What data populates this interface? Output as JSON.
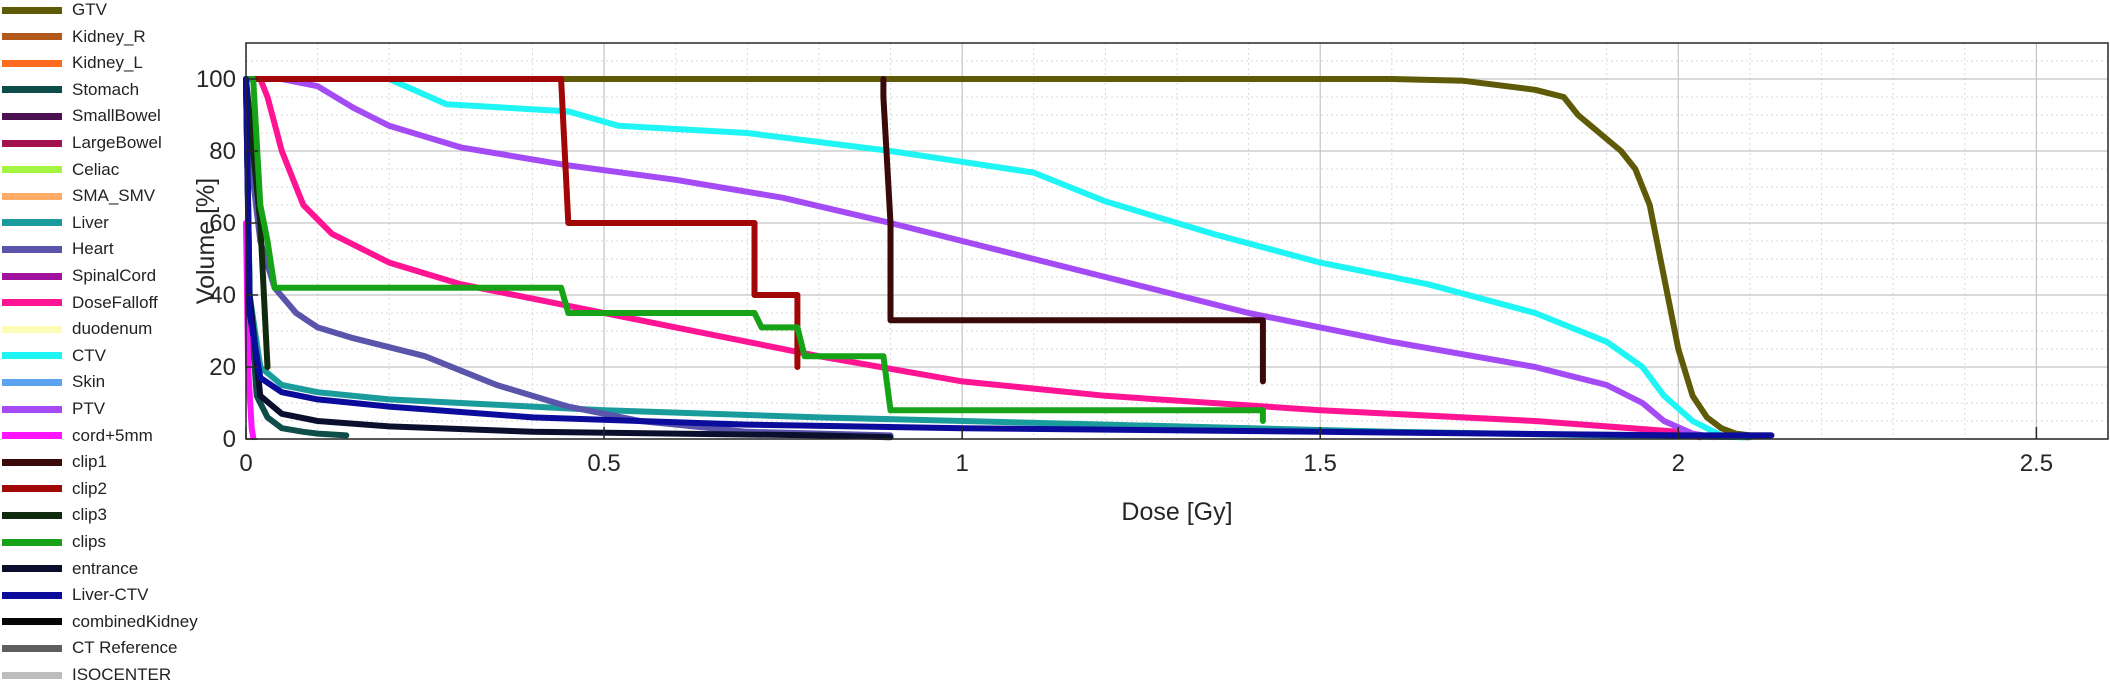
{
  "chart_data": {
    "type": "line",
    "xlabel": "Dose [Gy]",
    "ylabel": "Volume [%]",
    "xlim": [
      0,
      2.6
    ],
    "ylim": [
      0,
      110
    ],
    "xticks": [
      0,
      0.5,
      1,
      1.5,
      2,
      2.5
    ],
    "xtick_labels": [
      "0",
      "0.5",
      "1",
      "1.5",
      "2",
      "2.5"
    ],
    "yticks": [
      0,
      20,
      40,
      60,
      80,
      100
    ],
    "ytick_labels": [
      "0",
      "20",
      "40",
      "60",
      "80",
      "100"
    ],
    "grid": true,
    "minor_grid": true,
    "legend_position": "left",
    "series": [
      {
        "name": "GTV",
        "color": "#5e5a07",
        "x": [
          0,
          1.6,
          1.7,
          1.8,
          1.84,
          1.86,
          1.89,
          1.92,
          1.94,
          1.96,
          1.98,
          2.0,
          2.02,
          2.04,
          2.06,
          2.08,
          2.1,
          2.13
        ],
        "y": [
          100,
          100,
          99.5,
          97,
          95,
          90,
          85,
          80,
          75,
          65,
          45,
          25,
          12,
          6,
          3,
          1.5,
          1,
          1
        ]
      },
      {
        "name": "Kidney_R",
        "color": "#b3581b",
        "x": [],
        "y": []
      },
      {
        "name": "Kidney_L",
        "color": "#ff6a1f",
        "x": [],
        "y": []
      },
      {
        "name": "Stomach",
        "color": "#0f4d4a",
        "x": [
          0,
          0.005,
          0.015,
          0.03,
          0.05,
          0.08,
          0.1,
          0.14
        ],
        "y": [
          100,
          40,
          12,
          6,
          3,
          2,
          1.5,
          1
        ]
      },
      {
        "name": "SmallBowel",
        "color": "#4b1050",
        "x": [],
        "y": []
      },
      {
        "name": "LargeBowel",
        "color": "#a3124e",
        "x": [],
        "y": []
      },
      {
        "name": "Celiac",
        "color": "#a3f542",
        "x": [],
        "y": []
      },
      {
        "name": "SMA_SMV",
        "color": "#ffad66",
        "x": [],
        "y": []
      },
      {
        "name": "Liver",
        "color": "#1b9c9c",
        "x": [
          0,
          0.005,
          0.02,
          0.05,
          0.1,
          0.2,
          0.3,
          0.5,
          0.8,
          1.2,
          1.6,
          1.9,
          2.1
        ],
        "y": [
          100,
          40,
          20,
          15,
          13,
          11,
          10,
          8,
          6,
          4,
          2,
          1,
          0.5
        ]
      },
      {
        "name": "Heart",
        "color": "#5a55aa",
        "x": [
          0,
          0.005,
          0.02,
          0.04,
          0.07,
          0.1,
          0.15,
          0.25,
          0.35,
          0.45,
          0.55,
          0.7,
          0.9
        ],
        "y": [
          100,
          80,
          55,
          42,
          35,
          31,
          28,
          23,
          15,
          9,
          5,
          2,
          1
        ]
      },
      {
        "name": "SpinalCord",
        "color": "#a0129e",
        "x": [],
        "y": []
      },
      {
        "name": "DoseFalloff",
        "color": "#ff1493",
        "x": [
          0,
          0.02,
          0.03,
          0.05,
          0.08,
          0.12,
          0.2,
          0.3,
          0.45,
          0.6,
          0.8,
          1.0,
          1.2,
          1.5,
          1.8,
          2.0,
          2.03
        ],
        "y": [
          100,
          100,
          95,
          80,
          65,
          57,
          49,
          43,
          37,
          31,
          23,
          16,
          12,
          8,
          5,
          2,
          0.5
        ]
      },
      {
        "name": "duodenum",
        "color": "#fdfdb8",
        "x": [],
        "y": []
      },
      {
        "name": "CTV",
        "color": "#1ff5f5",
        "x": [
          0,
          0.2,
          0.28,
          0.45,
          0.52,
          0.7,
          0.9,
          1.0,
          1.1,
          1.2,
          1.35,
          1.5,
          1.65,
          1.8,
          1.9,
          1.95,
          1.98,
          2.02,
          2.06,
          2.09
        ],
        "y": [
          100,
          100,
          93,
          91,
          87,
          85,
          80,
          77,
          74,
          66,
          57,
          49,
          43,
          35,
          27,
          20,
          12,
          5,
          1,
          0.5
        ]
      },
      {
        "name": "Skin",
        "color": "#5aa3f0",
        "x": [],
        "y": []
      },
      {
        "name": "PTV",
        "color": "#a54bf5",
        "x": [
          0,
          0.05,
          0.1,
          0.15,
          0.2,
          0.3,
          0.45,
          0.6,
          0.75,
          0.9,
          1.0,
          1.2,
          1.4,
          1.6,
          1.8,
          1.9,
          1.95,
          1.98,
          2.02,
          2.05
        ],
        "y": [
          100,
          100,
          98,
          92,
          87,
          81,
          76,
          72,
          67,
          60,
          55,
          45,
          35,
          27,
          20,
          15,
          10,
          5,
          1.5,
          0.5
        ]
      },
      {
        "name": "cord+5mm",
        "color": "#ff14ff",
        "x": [
          0,
          0.003,
          0.008,
          0.01
        ],
        "y": [
          60,
          20,
          3,
          0.5
        ]
      },
      {
        "name": "clip1",
        "color": "#3a0a0a",
        "x": [
          0.89,
          0.89,
          0.9,
          0.9,
          1.42,
          1.42,
          1.42
        ],
        "y": [
          100,
          95,
          60,
          33,
          33,
          25,
          16
        ]
      },
      {
        "name": "clip2",
        "color": "#a10707",
        "x": [
          0,
          0.44,
          0.45,
          0.71,
          0.71,
          0.77,
          0.77,
          0.77
        ],
        "y": [
          100,
          100,
          60,
          60,
          40,
          40,
          25,
          20
        ]
      },
      {
        "name": "clip3",
        "color": "#0f2a0f",
        "x": [
          0,
          0.02,
          0.025,
          0.03
        ],
        "y": [
          100,
          60,
          40,
          20
        ]
      },
      {
        "name": "clips",
        "color": "#17a317",
        "x": [
          0,
          0.01,
          0.02,
          0.03,
          0.04,
          0.44,
          0.45,
          0.71,
          0.72,
          0.77,
          0.78,
          0.89,
          0.9,
          1.42,
          1.42
        ],
        "y": [
          100,
          100,
          65,
          55,
          42,
          42,
          35,
          35,
          31,
          31,
          23,
          23,
          8,
          8,
          5
        ]
      },
      {
        "name": "entrance",
        "color": "#0a0f2e",
        "x": [
          0,
          0.005,
          0.02,
          0.05,
          0.1,
          0.2,
          0.4,
          0.6,
          0.8,
          0.9
        ],
        "y": [
          100,
          40,
          12,
          7,
          5,
          3.5,
          2,
          1.5,
          1,
          0.5
        ]
      },
      {
        "name": "Liver-CTV",
        "color": "#0b0b9c",
        "x": [
          0,
          0.005,
          0.02,
          0.05,
          0.1,
          0.2,
          0.4,
          0.7,
          1.0,
          1.5,
          2.0,
          2.13
        ],
        "y": [
          100,
          35,
          17,
          13,
          11,
          9,
          6,
          4,
          3,
          2,
          1,
          1
        ]
      },
      {
        "name": "combinedKidney",
        "color": "#050505",
        "x": [],
        "y": []
      },
      {
        "name": "CT Reference",
        "color": "#5f5f5f",
        "x": [],
        "y": []
      },
      {
        "name": "ISOCENTER",
        "color": "#bdbdbd",
        "x": [],
        "y": []
      }
    ]
  }
}
